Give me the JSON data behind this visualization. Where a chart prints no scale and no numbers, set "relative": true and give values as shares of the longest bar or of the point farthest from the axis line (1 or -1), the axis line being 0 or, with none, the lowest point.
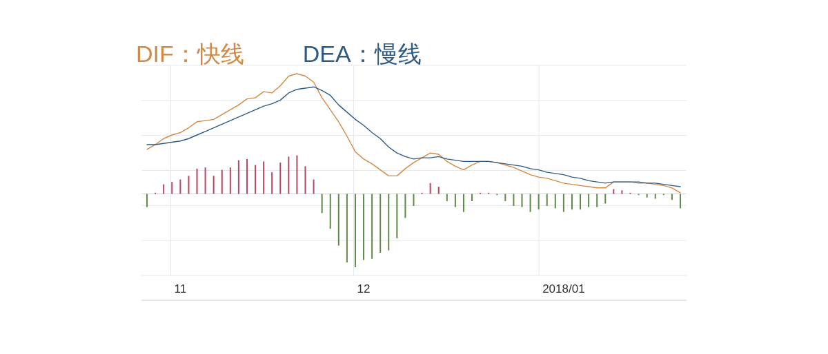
{
  "chart_data": {
    "type": "bar",
    "relative": true,
    "grid": true,
    "legend": "top left",
    "categories": [
      null,
      null,
      null,
      null,
      "11",
      null,
      null,
      null,
      null,
      null,
      null,
      null,
      null,
      null,
      null,
      null,
      null,
      null,
      null,
      null,
      null,
      null,
      null,
      null,
      null,
      null,
      "12",
      null,
      null,
      null,
      null,
      null,
      null,
      null,
      null,
      null,
      null,
      null,
      null,
      null,
      null,
      null,
      null,
      null,
      null,
      null,
      null,
      null,
      null,
      null,
      "2018/01",
      null,
      null,
      null,
      null,
      null,
      null,
      null,
      null,
      null,
      null,
      null,
      null,
      null,
      null
    ],
    "series": [
      {
        "values": [
          -0.11,
          0.01,
          0.08,
          0.1,
          0.12,
          0.15,
          0.21,
          0.22,
          0.15,
          0.2,
          0.22,
          0.28,
          0.29,
          0.24,
          0.27,
          0.18,
          0.26,
          0.31,
          0.32,
          0.23,
          0.12,
          -0.16,
          -0.29,
          -0.43,
          -0.57,
          -0.61,
          -0.55,
          -0.54,
          -0.49,
          -0.47,
          -0.37,
          -0.2,
          -0.1,
          0.01,
          0.09,
          0.06,
          -0.06,
          -0.11,
          -0.15,
          -0.06,
          0.01,
          0.01,
          -0.01,
          -0.06,
          -0.1,
          -0.11,
          -0.15,
          -0.13,
          -0.1,
          -0.12,
          -0.15,
          -0.13,
          -0.13,
          -0.11,
          -0.11,
          -0.08,
          0.04,
          0.03,
          0.01,
          -0.01,
          -0.03,
          -0.04,
          -0.01,
          -0.05,
          -0.12
        ],
        "colors": [
          "#5f8a45",
          "#b5475f",
          "#b5475f",
          "#b5475f",
          "#b5475f",
          "#b5475f",
          "#b5475f",
          "#b5475f",
          "#b5475f",
          "#b5475f",
          "#b5475f",
          "#b5475f",
          "#b5475f",
          "#b5475f",
          "#b5475f",
          "#b5475f",
          "#b5475f",
          "#b5475f",
          "#b5475f",
          "#b5475f",
          "#b5475f",
          "#5f8a45",
          "#5f8a45",
          "#5f8a45",
          "#5f8a45",
          "#5f8a45",
          "#5f8a45",
          "#5f8a45",
          "#5f8a45",
          "#5f8a45",
          "#5f8a45",
          "#5f8a45",
          "#5f8a45",
          "#b5475f",
          "#b5475f",
          "#b5475f",
          "#5f8a45",
          "#5f8a45",
          "#5f8a45",
          "#5f8a45",
          "#b5475f",
          "#b5475f",
          "#5f8a45",
          "#5f8a45",
          "#5f8a45",
          "#5f8a45",
          "#5f8a45",
          "#5f8a45",
          "#5f8a45",
          "#5f8a45",
          "#5f8a45",
          "#5f8a45",
          "#5f8a45",
          "#5f8a45",
          "#5f8a45",
          "#5f8a45",
          "#b5475f",
          "#b5475f",
          "#b5475f",
          "#5f8a45",
          "#5f8a45",
          "#5f8a45",
          "#5f8a45",
          "#5f8a45",
          "#5f8a45"
        ]
      },
      {
        "type": "line",
        "name": "DIF：快线",
        "color": "#d08a45",
        "values": [
          0.37,
          0.41,
          0.46,
          0.49,
          0.51,
          0.55,
          0.6,
          0.61,
          0.62,
          0.66,
          0.7,
          0.74,
          0.79,
          0.8,
          0.85,
          0.84,
          0.9,
          0.98,
          1,
          0.98,
          0.93,
          0.8,
          0.7,
          0.6,
          0.48,
          0.35,
          0.29,
          0.25,
          0.2,
          0.15,
          0.15,
          0.21,
          0.26,
          0.3,
          0.34,
          0.33,
          0.27,
          0.23,
          0.2,
          0.24,
          0.27,
          0.27,
          0.26,
          0.24,
          0.22,
          0.19,
          0.16,
          0.14,
          0.13,
          0.11,
          0.09,
          0.08,
          0.07,
          0.06,
          0.05,
          0.05,
          0.1,
          0.1,
          0.1,
          0.09,
          0.09,
          0.08,
          0.07,
          0.05,
          0.01
        ]
      },
      {
        "type": "line",
        "name": "DEA：慢线",
        "color": "#2e5b84",
        "values": [
          0.41,
          0.41,
          0.42,
          0.43,
          0.44,
          0.46,
          0.49,
          0.52,
          0.55,
          0.58,
          0.61,
          0.64,
          0.67,
          0.7,
          0.73,
          0.75,
          0.78,
          0.84,
          0.87,
          0.88,
          0.89,
          0.86,
          0.82,
          0.74,
          0.68,
          0.62,
          0.57,
          0.51,
          0.46,
          0.39,
          0.34,
          0.31,
          0.29,
          0.3,
          0.3,
          0.31,
          0.29,
          0.28,
          0.27,
          0.27,
          0.27,
          0.27,
          0.26,
          0.25,
          0.24,
          0.23,
          0.21,
          0.2,
          0.18,
          0.17,
          0.16,
          0.14,
          0.13,
          0.11,
          0.1,
          0.09,
          0.1,
          0.1,
          0.1,
          0.1,
          0.09,
          0.09,
          0.08,
          0.07,
          0.06
        ]
      }
    ]
  }
}
